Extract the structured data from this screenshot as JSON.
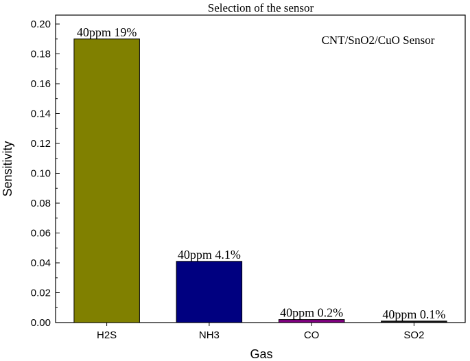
{
  "chart_data": {
    "type": "bar",
    "title": "Selection of the sensor",
    "xlabel": "Gas",
    "ylabel": "Sensitivity",
    "categories": [
      "H2S",
      "NH3",
      "CO",
      "SO2"
    ],
    "values": [
      0.19,
      0.041,
      0.002,
      0.001
    ],
    "bar_labels": [
      "40ppm 19%",
      "40ppm 4.1%",
      "40ppm 0.2%",
      "40ppm 0.1%"
    ],
    "bar_colors": [
      "#808000",
      "#000080",
      "#800080",
      "#1a1a1a"
    ],
    "annotation": "CNT/SnO2/CuO Sensor",
    "ylim": [
      0,
      0.2
    ],
    "yticks": [
      0.0,
      0.02,
      0.04,
      0.06,
      0.08,
      0.1,
      0.12,
      0.14,
      0.16,
      0.18,
      0.2
    ],
    "ytick_labels": [
      "0.00",
      "0.02",
      "0.04",
      "0.06",
      "0.08",
      "0.10",
      "0.12",
      "0.14",
      "0.16",
      "0.18",
      "0.20"
    ],
    "grid": false,
    "legend": "none"
  }
}
